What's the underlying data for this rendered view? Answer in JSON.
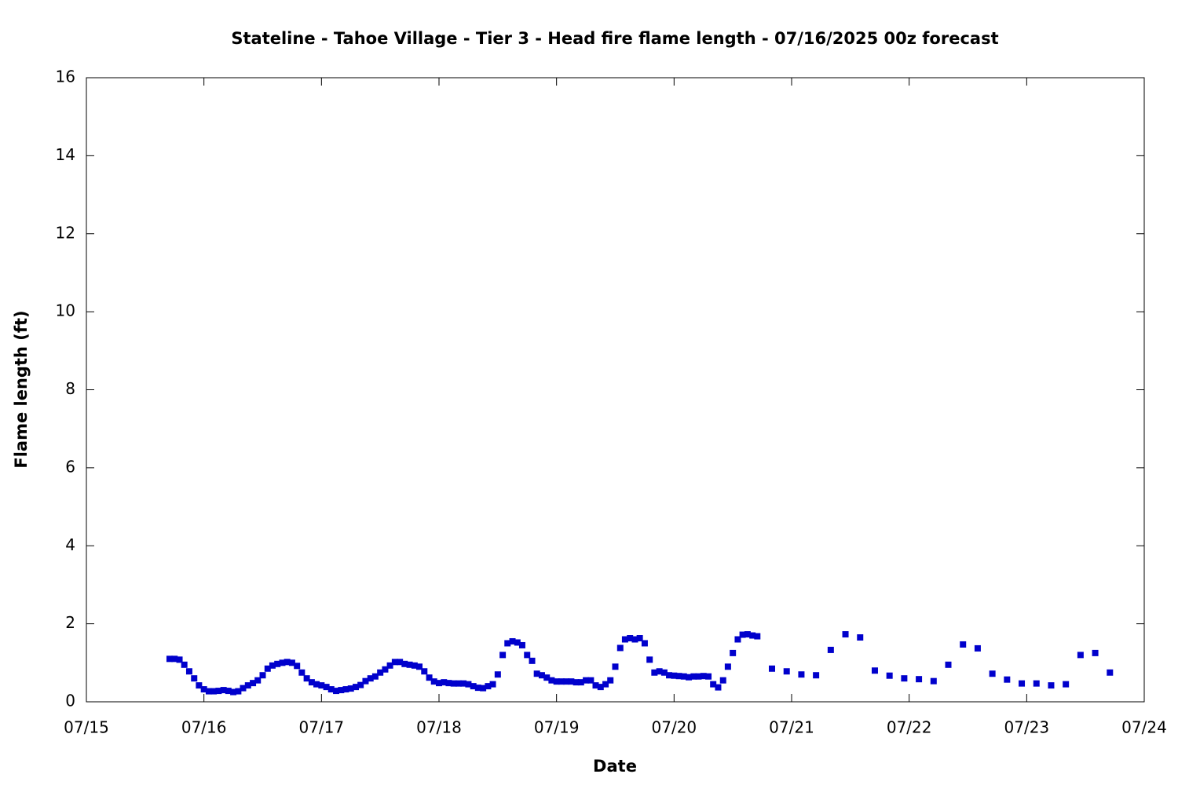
{
  "chart_data": {
    "type": "scatter",
    "title": "Stateline - Tahoe Village - Tier 3 - Head fire flame length - 07/16/2025 00z forecast",
    "x_label": "Date",
    "y_label": "Flame length (ft)",
    "color": "#0000cc",
    "x": [
      15.708,
      15.75,
      15.792,
      15.833,
      15.875,
      15.917,
      15.958,
      16.0,
      16.042,
      16.083,
      16.125,
      16.167,
      16.208,
      16.25,
      16.292,
      16.333,
      16.375,
      16.417,
      16.458,
      16.5,
      16.542,
      16.583,
      16.625,
      16.667,
      16.708,
      16.75,
      16.792,
      16.833,
      16.875,
      16.917,
      16.958,
      17.0,
      17.042,
      17.083,
      17.125,
      17.167,
      17.208,
      17.25,
      17.292,
      17.333,
      17.375,
      17.417,
      17.458,
      17.5,
      17.542,
      17.583,
      17.625,
      17.667,
      17.708,
      17.75,
      17.792,
      17.833,
      17.875,
      17.917,
      17.958,
      18.0,
      18.042,
      18.083,
      18.125,
      18.167,
      18.208,
      18.25,
      18.292,
      18.333,
      18.375,
      18.417,
      18.458,
      18.5,
      18.542,
      18.583,
      18.625,
      18.667,
      18.708,
      18.75,
      18.792,
      18.833,
      18.875,
      18.917,
      18.958,
      19.0,
      19.042,
      19.083,
      19.125,
      19.167,
      19.208,
      19.25,
      19.292,
      19.333,
      19.375,
      19.417,
      19.458,
      19.5,
      19.542,
      19.583,
      19.625,
      19.667,
      19.708,
      19.75,
      19.792,
      19.833,
      19.875,
      19.917,
      19.958,
      20.0,
      20.042,
      20.083,
      20.125,
      20.167,
      20.208,
      20.25,
      20.292,
      20.333,
      20.375,
      20.417,
      20.458,
      20.5,
      20.542,
      20.583,
      20.625,
      20.667,
      20.708,
      20.833,
      20.958,
      21.083,
      21.208,
      21.333,
      21.458,
      21.583,
      21.708,
      21.833,
      21.958,
      22.083,
      22.208,
      22.333,
      22.458,
      22.583,
      22.708,
      22.833,
      22.958,
      23.083,
      23.208,
      23.333,
      23.458,
      23.583,
      23.708
    ],
    "values": [
      1.1,
      1.1,
      1.08,
      0.95,
      0.78,
      0.6,
      0.42,
      0.32,
      0.27,
      0.27,
      0.28,
      0.3,
      0.28,
      0.25,
      0.27,
      0.35,
      0.42,
      0.48,
      0.55,
      0.68,
      0.85,
      0.93,
      0.97,
      1.0,
      1.02,
      1.0,
      0.92,
      0.75,
      0.6,
      0.5,
      0.45,
      0.42,
      0.38,
      0.32,
      0.28,
      0.3,
      0.32,
      0.34,
      0.38,
      0.43,
      0.53,
      0.6,
      0.65,
      0.75,
      0.83,
      0.93,
      1.02,
      1.02,
      0.97,
      0.95,
      0.93,
      0.9,
      0.78,
      0.62,
      0.52,
      0.48,
      0.5,
      0.48,
      0.47,
      0.47,
      0.47,
      0.45,
      0.4,
      0.36,
      0.35,
      0.4,
      0.45,
      0.7,
      1.2,
      1.5,
      1.55,
      1.52,
      1.45,
      1.2,
      1.05,
      0.72,
      0.68,
      0.62,
      0.55,
      0.52,
      0.52,
      0.52,
      0.52,
      0.5,
      0.5,
      0.55,
      0.55,
      0.42,
      0.38,
      0.45,
      0.55,
      0.9,
      1.38,
      1.6,
      1.63,
      1.6,
      1.63,
      1.5,
      1.08,
      0.75,
      0.78,
      0.75,
      0.68,
      0.67,
      0.66,
      0.65,
      0.63,
      0.65,
      0.65,
      0.66,
      0.65,
      0.45,
      0.37,
      0.55,
      0.9,
      1.25,
      1.6,
      1.72,
      1.73,
      1.7,
      1.68,
      0.85,
      0.78,
      0.7,
      0.68,
      1.33,
      1.73,
      1.65,
      0.8,
      0.67,
      0.6,
      0.58,
      0.53,
      0.95,
      1.47,
      1.37,
      0.72,
      0.57,
      0.47,
      0.47,
      0.42,
      0.45,
      1.2,
      1.25,
      0.75
    ],
    "xlim": [
      15,
      24
    ],
    "xticks": [
      {
        "value": 15,
        "label": "07/15"
      },
      {
        "value": 16,
        "label": "07/16"
      },
      {
        "value": 17,
        "label": "07/17"
      },
      {
        "value": 18,
        "label": "07/18"
      },
      {
        "value": 19,
        "label": "07/19"
      },
      {
        "value": 20,
        "label": "07/20"
      },
      {
        "value": 21,
        "label": "07/21"
      },
      {
        "value": 22,
        "label": "07/22"
      },
      {
        "value": 23,
        "label": "07/23"
      },
      {
        "value": 24,
        "label": "07/24"
      }
    ],
    "ylim": [
      0,
      16
    ],
    "yticks": [
      0,
      2,
      4,
      6,
      8,
      10,
      12,
      14,
      16
    ],
    "grid": false
  }
}
